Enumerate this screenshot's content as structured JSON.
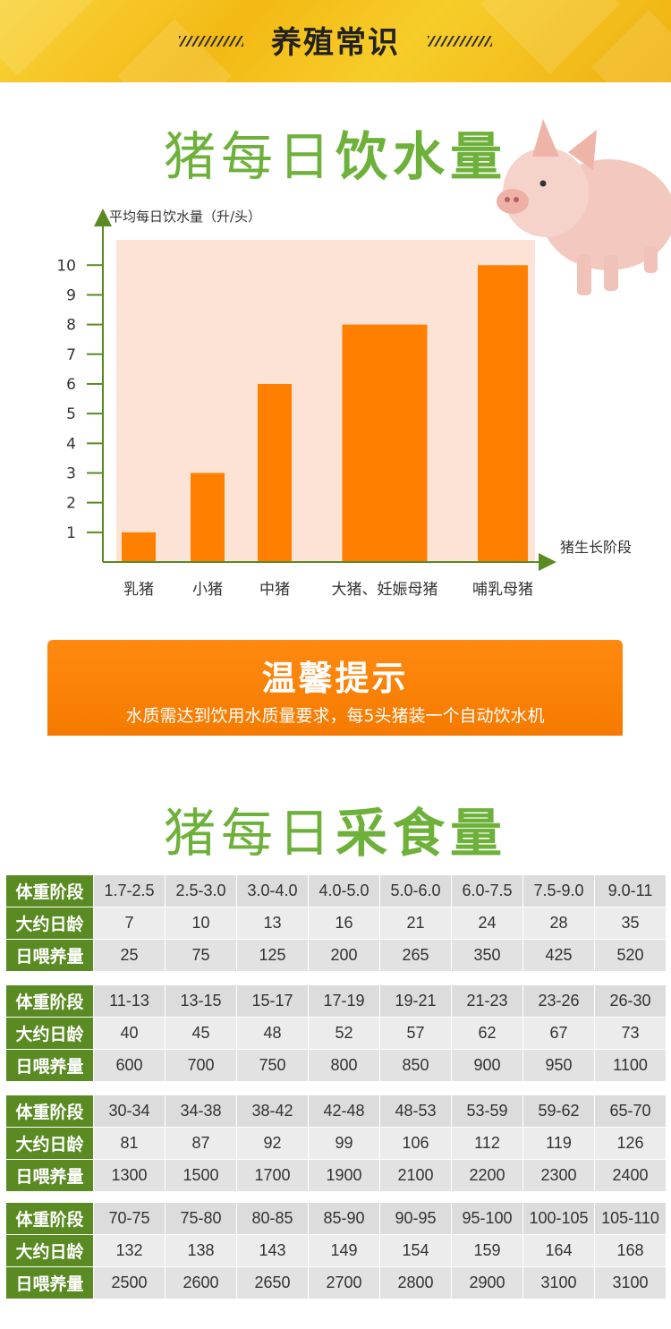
{
  "banner": {
    "title": "养殖常识"
  },
  "water_section": {
    "title_part1": "猪每日",
    "title_part2": "饮水量"
  },
  "chart_data": {
    "type": "bar",
    "ylabel": "平均每日饮水量（升/头）",
    "xlabel": "猪生长阶段",
    "categories": [
      "乳猪",
      "小猪",
      "中猪",
      "大猪、妊娠母猪",
      "哺乳母猪"
    ],
    "values": [
      1,
      3,
      6,
      8,
      10
    ],
    "yticks": [
      1,
      2,
      3,
      4,
      5,
      6,
      7,
      8,
      9,
      10
    ],
    "ylim": [
      0,
      10.9
    ],
    "bar_color": "#ff8000",
    "plot_bg": "#fde3d6",
    "axis_color": "#5a8a22",
    "grid": false
  },
  "tip": {
    "title": "温馨提示",
    "text": "水质需达到饮用水质量要求，每5头猪装一个自动饮水机"
  },
  "feed_section": {
    "title_part1": "猪每日",
    "title_part2": "采食量"
  },
  "feed_table": {
    "row_headers": [
      "体重阶段",
      "大约日龄",
      "日喂养量"
    ],
    "groups": [
      {
        "weights": [
          "1.7-2.5",
          "2.5-3.0",
          "3.0-4.0",
          "4.0-5.0",
          "5.0-6.0",
          "6.0-7.5",
          "7.5-9.0",
          "9.0-11"
        ],
        "days": [
          "7",
          "10",
          "13",
          "16",
          "21",
          "24",
          "28",
          "35"
        ],
        "feed": [
          "25",
          "75",
          "125",
          "200",
          "265",
          "350",
          "425",
          "520"
        ]
      },
      {
        "weights": [
          "11-13",
          "13-15",
          "15-17",
          "17-19",
          "19-21",
          "21-23",
          "23-26",
          "26-30"
        ],
        "days": [
          "40",
          "45",
          "48",
          "52",
          "57",
          "62",
          "67",
          "73"
        ],
        "feed": [
          "600",
          "700",
          "750",
          "800",
          "850",
          "900",
          "950",
          "1100"
        ]
      },
      {
        "weights": [
          "30-34",
          "34-38",
          "38-42",
          "42-48",
          "48-53",
          "53-59",
          "59-62",
          "65-70"
        ],
        "days": [
          "81",
          "87",
          "92",
          "99",
          "106",
          "112",
          "119",
          "126"
        ],
        "feed": [
          "1300",
          "1500",
          "1700",
          "1900",
          "2100",
          "2200",
          "2300",
          "2400"
        ]
      },
      {
        "weights": [
          "70-75",
          "75-80",
          "80-85",
          "85-90",
          "90-95",
          "95-100",
          "100-105",
          "105-110"
        ],
        "days": [
          "132",
          "138",
          "143",
          "149",
          "154",
          "159",
          "164",
          "168"
        ],
        "feed": [
          "2500",
          "2600",
          "2650",
          "2700",
          "2800",
          "2900",
          "3100",
          "3100"
        ]
      }
    ]
  }
}
